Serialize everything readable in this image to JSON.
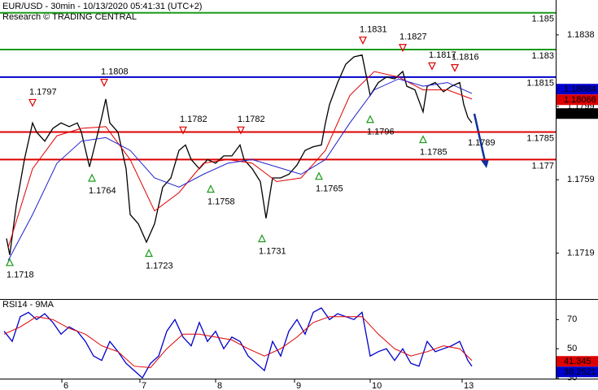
{
  "chart_data": [
    {
      "type": "line",
      "title": "EUR/USD - 30min - 10/13/2020 05:41:31 (UTC+2)",
      "subtitle": "Research © TRADING CENTRAL",
      "xlim": [
        0,
        341.5
      ],
      "ylim": [
        1.1694,
        1.1857
      ],
      "yticks": [
        1.1838,
        1.1799,
        1.1759,
        1.1719
      ],
      "series": [
        {
          "name": "price",
          "color": "#000000",
          "x": [
            4,
            6,
            10,
            15,
            20,
            22.5,
            27.5,
            32.5,
            37.5,
            42.5,
            47.5,
            50,
            55,
            57.5,
            62.5,
            65,
            67.5,
            72.5,
            77.5,
            80,
            85,
            90,
            95,
            100,
            105,
            110,
            114,
            117.5,
            122.5,
            127.5,
            132.5,
            137.5,
            142.5,
            147.5,
            150,
            155,
            160,
            163.5,
            167.5,
            172.5,
            177.5,
            182.5,
            187.5,
            192.5,
            197.5,
            200,
            202.5,
            207.5,
            212.5,
            217.5,
            222.5,
            227.5,
            232.5,
            237.5,
            242.5,
            247.5,
            250,
            255,
            260,
            262.5,
            267.5,
            272.5,
            277.5,
            282.5,
            285,
            287.5,
            290
          ],
          "values": [
            1.1727,
            1.1718,
            1.1745,
            1.177,
            1.179,
            1.1785,
            1.178,
            1.1787,
            1.179,
            1.1788,
            1.179,
            1.1785,
            1.1766,
            1.1775,
            1.1793,
            1.1803,
            1.179,
            1.1785,
            1.1765,
            1.174,
            1.1735,
            1.1725,
            1.1735,
            1.1755,
            1.176,
            1.1775,
            1.1778,
            1.177,
            1.1765,
            1.177,
            1.1768,
            1.1772,
            1.1772,
            1.1778,
            1.177,
            1.1765,
            1.1758,
            1.1738,
            1.176,
            1.176,
            1.1762,
            1.1767,
            1.1775,
            1.1777,
            1.1778,
            1.179,
            1.18,
            1.1812,
            1.1822,
            1.1826,
            1.1827,
            1.1805,
            1.1812,
            1.1815,
            1.1814,
            1.1818,
            1.181,
            1.1808,
            1.1796,
            1.181,
            1.1812,
            1.1807,
            1.181,
            1.1812,
            1.18,
            1.1793,
            1.179
          ]
        },
        {
          "name": "ma-fast",
          "color": "#e00000",
          "x": [
            5,
            20,
            35,
            50,
            65,
            80,
            95,
            110,
            125,
            140,
            155,
            170,
            185,
            200,
            215,
            230,
            245,
            260,
            275,
            290
          ],
          "values": [
            1.1722,
            1.1765,
            1.1783,
            1.1787,
            1.1788,
            1.177,
            1.1742,
            1.1752,
            1.1768,
            1.177,
            1.1768,
            1.1758,
            1.176,
            1.1775,
            1.1805,
            1.1818,
            1.1815,
            1.1808,
            1.1808,
            1.1803
          ]
        },
        {
          "name": "ma-slow",
          "color": "#2020d0",
          "x": [
            5,
            20,
            35,
            50,
            65,
            80,
            95,
            110,
            125,
            140,
            155,
            170,
            185,
            200,
            215,
            230,
            245,
            260,
            275,
            290
          ],
          "values": [
            1.1715,
            1.174,
            1.1768,
            1.178,
            1.1782,
            1.1775,
            1.176,
            1.1755,
            1.1762,
            1.1768,
            1.177,
            1.1766,
            1.1762,
            1.177,
            1.179,
            1.1808,
            1.1814,
            1.181,
            1.1812,
            1.1806
          ]
        }
      ],
      "levels": [
        {
          "value": 1.185,
          "color": "#1a9a1a"
        },
        {
          "value": 1.183,
          "color": "#1a9a1a"
        },
        {
          "value": 1.1815,
          "color": "#0000cc"
        },
        {
          "value": 1.1785,
          "color": "#dd0000"
        },
        {
          "value": 1.177,
          "color": "#dd0000"
        }
      ],
      "pivots": [
        {
          "x": 20,
          "value": 1.1797,
          "kind": "high"
        },
        {
          "x": 64,
          "value": 1.1808,
          "kind": "high"
        },
        {
          "x": 112.5,
          "value": 1.1782,
          "kind": "high"
        },
        {
          "x": 148,
          "value": 1.1782,
          "kind": "high"
        },
        {
          "x": 223,
          "value": 1.1831,
          "kind": "high"
        },
        {
          "x": 247.5,
          "value": 1.1827,
          "kind": "high"
        },
        {
          "x": 265.5,
          "value": 1.1817,
          "kind": "high"
        },
        {
          "x": 279.5,
          "value": 1.1816,
          "kind": "high"
        },
        {
          "x": 6,
          "value": 1.1718,
          "kind": "low"
        },
        {
          "x": 56.5,
          "value": 1.1764,
          "kind": "low"
        },
        {
          "x": 91.5,
          "value": 1.1723,
          "kind": "low"
        },
        {
          "x": 129.5,
          "value": 1.1758,
          "kind": "low"
        },
        {
          "x": 161,
          "value": 1.1731,
          "kind": "low"
        },
        {
          "x": 196,
          "value": 1.1765,
          "kind": "low"
        },
        {
          "x": 227.5,
          "value": 1.1796,
          "kind": "low"
        },
        {
          "x": 260,
          "value": 1.1785,
          "kind": "low"
        }
      ],
      "forecast_label": "1.1789",
      "tags": [
        {
          "value": 1.18084,
          "color": "#0000cc"
        },
        {
          "value": 1.18066,
          "color": "#dd0000"
        },
        {
          "value": 1.17951,
          "color": "#000000"
        }
      ]
    },
    {
      "type": "line",
      "title": "RSI14 - 9MA",
      "xlim": [
        0,
        341.5
      ],
      "ylim": [
        29.5,
        83
      ],
      "yticks": [
        70,
        50,
        30
      ],
      "xticks": [
        {
          "value": 38,
          "label": "6"
        },
        {
          "value": 86,
          "label": "7"
        },
        {
          "value": 132.5,
          "label": "8"
        },
        {
          "value": 181,
          "label": "9"
        },
        {
          "value": 227.5,
          "label": "10"
        },
        {
          "value": 284,
          "label": "13"
        }
      ],
      "series": [
        {
          "name": "rsi",
          "color": "#0000cc",
          "x": [
            2.5,
            7.5,
            12.5,
            17.5,
            22.5,
            27.5,
            32.5,
            37.5,
            42.5,
            47.5,
            52.5,
            57.5,
            62.5,
            67.5,
            72.5,
            77.5,
            82.5,
            87.5,
            92.5,
            97.5,
            102.5,
            107.5,
            112.5,
            117.5,
            122.5,
            127.5,
            132.5,
            137.5,
            142.5,
            147.5,
            152.5,
            157.5,
            162.5,
            167.5,
            172.5,
            177.5,
            182.5,
            187.5,
            192.5,
            197.5,
            202.5,
            207.5,
            212.5,
            217.5,
            222.5,
            227.5,
            232.5,
            237.5,
            242.5,
            247.5,
            252.5,
            257.5,
            262.5,
            267.5,
            272.5,
            277.5,
            282.5,
            287.5,
            290
          ],
          "values": [
            62,
            55,
            72,
            75,
            70,
            74,
            68,
            60,
            65,
            62,
            55,
            45,
            42,
            55,
            48,
            40,
            35,
            30,
            40,
            45,
            62,
            70,
            58,
            52,
            68,
            55,
            62,
            50,
            58,
            55,
            45,
            40,
            35,
            55,
            45,
            62,
            70,
            60,
            75,
            78,
            70,
            74,
            72,
            70,
            75,
            45,
            48,
            50,
            42,
            50,
            40,
            38,
            55,
            48,
            50,
            52,
            55,
            42,
            38
          ]
        },
        {
          "name": "rsi-ma",
          "color": "#e00000",
          "x": [
            2.5,
            12.5,
            22.5,
            32.5,
            42.5,
            52.5,
            62.5,
            72.5,
            82.5,
            92.5,
            102.5,
            112.5,
            122.5,
            132.5,
            142.5,
            152.5,
            162.5,
            172.5,
            182.5,
            192.5,
            202.5,
            212.5,
            222.5,
            232.5,
            242.5,
            252.5,
            262.5,
            272.5,
            282.5,
            290
          ],
          "values": [
            60,
            65,
            72,
            70,
            64,
            60,
            52,
            48,
            38,
            37,
            50,
            60,
            60,
            58,
            56,
            50,
            45,
            50,
            58,
            68,
            72,
            72,
            72,
            60,
            50,
            45,
            48,
            52,
            50,
            42
          ]
        }
      ],
      "tags": [
        {
          "value": 41.345,
          "color": "#dd0000"
        },
        {
          "value": 38.2521,
          "color": "#0000cc"
        }
      ]
    }
  ]
}
